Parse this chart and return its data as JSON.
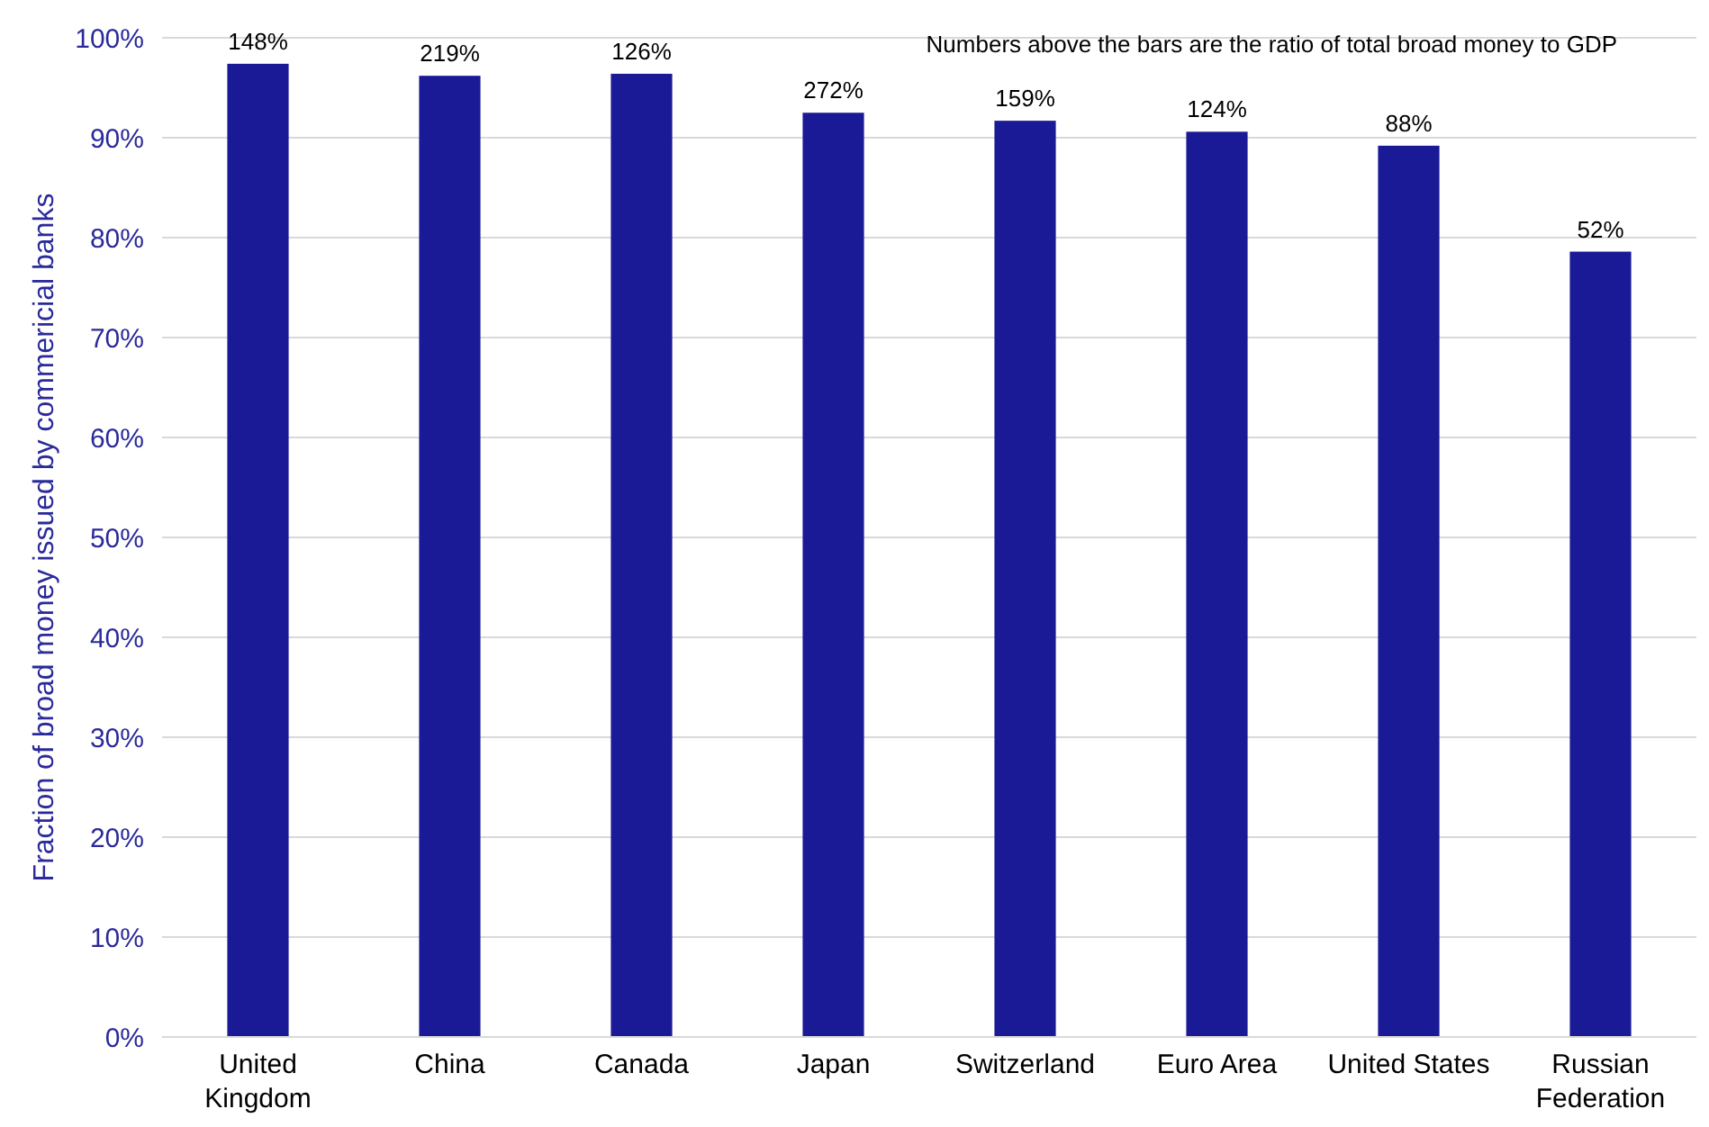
{
  "chart_data": {
    "type": "bar",
    "ylabel": "Fraction of broad money issued by commericial banks",
    "categories": [
      "United Kingdom",
      "China",
      "Canada",
      "Japan",
      "Switzerland",
      "Euro Area",
      "United States",
      "Russian Federation"
    ],
    "values": [
      97.4,
      96.2,
      96.4,
      92.5,
      91.7,
      90.6,
      89.2,
      78.6
    ],
    "color": "#1a1a96",
    "ylim": [
      0,
      100
    ],
    "yticks": [
      {
        "value": 0,
        "label": "0%"
      },
      {
        "value": 10,
        "label": "10%"
      },
      {
        "value": 20,
        "label": "20%"
      },
      {
        "value": 30,
        "label": "30%"
      },
      {
        "value": 40,
        "label": "40%"
      },
      {
        "value": 50,
        "label": "50%"
      },
      {
        "value": 60,
        "label": "60%"
      },
      {
        "value": 70,
        "label": "70%"
      },
      {
        "value": 80,
        "label": "80%"
      },
      {
        "value": 90,
        "label": "90%"
      },
      {
        "value": 100,
        "label": "100%"
      }
    ],
    "grid": "y",
    "annotations": [
      "Numbers above the bars are the ratio of total broad money to GDP",
      {
        "text": "148%",
        "x": "United Kingdom",
        "y": 97.4
      },
      {
        "text": "219%",
        "x": "China",
        "y": 96.2
      },
      {
        "text": "126%",
        "x": "Canada",
        "y": 96.4
      },
      {
        "text": "272%",
        "x": "Japan",
        "y": 92.5
      },
      {
        "text": "159%",
        "x": "Switzerland",
        "y": 91.7
      },
      {
        "text": "124%",
        "x": "Euro Area",
        "y": 90.6
      },
      {
        "text": "88%",
        "x": "United States",
        "y": 89.2
      },
      {
        "text": "52%",
        "x": "Russian Federation",
        "y": 78.6
      }
    ]
  }
}
